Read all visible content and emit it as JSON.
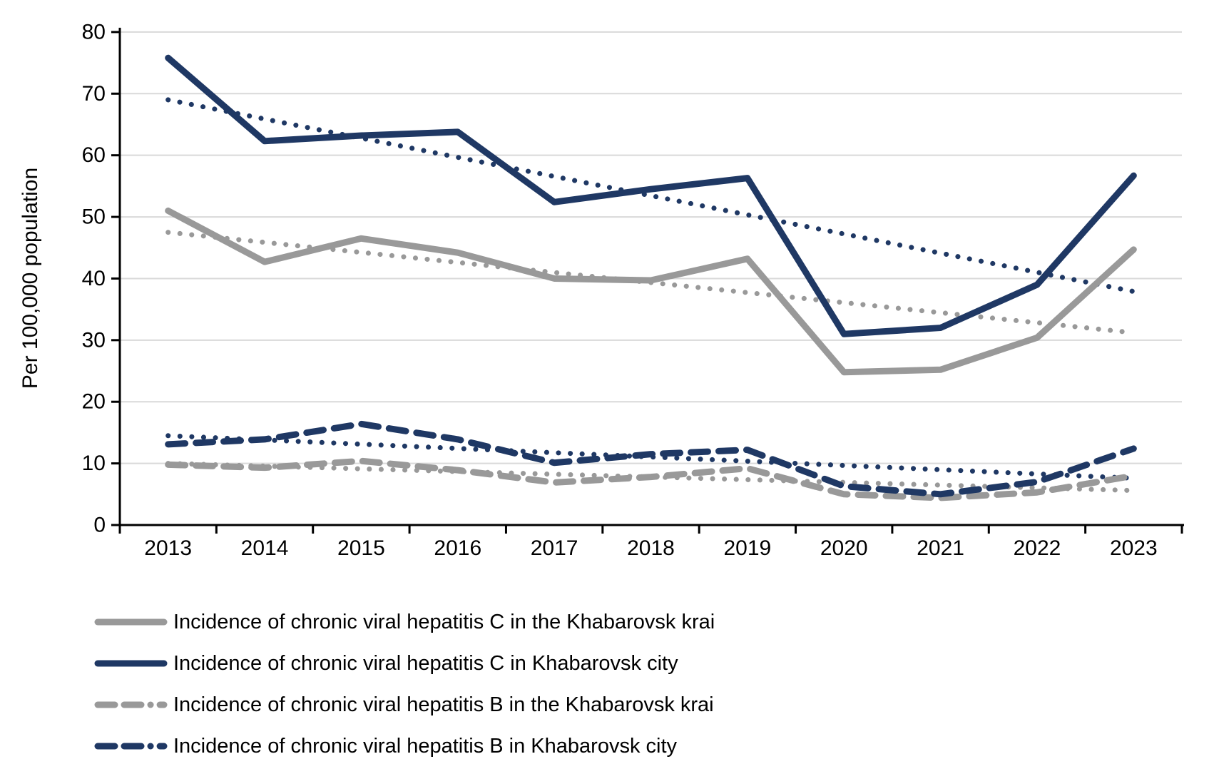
{
  "page": {
    "background": "#FFFFFF"
  },
  "colors": {
    "navy": "#1F3864",
    "gray": "#999999",
    "gridline": "#D9D9D9",
    "axis": "#000000",
    "text": "#000000"
  },
  "y_axis": {
    "title": "Per 100,000 population",
    "min": 0,
    "max": 80,
    "tick_step": 10,
    "ticks": [
      0,
      10,
      20,
      30,
      40,
      50,
      60,
      70,
      80
    ]
  },
  "x_axis": {
    "categories": [
      "2013",
      "2014",
      "2015",
      "2016",
      "2017",
      "2018",
      "2019",
      "2020",
      "2021",
      "2022",
      "2023"
    ]
  },
  "chart_data": {
    "type": "line",
    "title": "",
    "xlabel": "",
    "ylabel": "Per 100,000 population",
    "x": [
      "2013",
      "2014",
      "2015",
      "2016",
      "2017",
      "2018",
      "2019",
      "2020",
      "2021",
      "2022",
      "2023"
    ],
    "ylim": [
      0,
      80
    ],
    "grid": "horizontal",
    "legend_position": "bottom-left",
    "series": [
      {
        "name": "Incidence of chronic viral hepatitis C in the Khabarovsk krai",
        "color": "gray",
        "style": "solid",
        "values": [
          51.0,
          42.7,
          46.5,
          44.2,
          40.0,
          39.7,
          43.2,
          24.8,
          25.2,
          30.4,
          44.7
        ],
        "trendline": {
          "style": "dotted",
          "start": 47.5,
          "end": 31.2
        }
      },
      {
        "name": "Incidence of chronic viral hepatitis C in Khabarovsk city",
        "color": "navy",
        "style": "solid",
        "values": [
          75.8,
          62.3,
          63.2,
          63.8,
          52.4,
          54.5,
          56.3,
          31.0,
          32.0,
          39.0,
          56.7
        ],
        "trendline": {
          "style": "dotted",
          "start": 69.0,
          "end": 37.9
        }
      },
      {
        "name": "Incidence of chronic viral hepatitis B in the Khabarovsk krai",
        "color": "gray",
        "style": "dashed",
        "values": [
          9.8,
          9.3,
          10.4,
          8.9,
          6.9,
          7.8,
          9.2,
          5.0,
          4.4,
          5.3,
          8.0
        ],
        "trendline": {
          "style": "dotted",
          "start": 10.0,
          "end": 5.6
        }
      },
      {
        "name": "Incidence of chronic viral hepatitis B in Khabarovsk city",
        "color": "navy",
        "style": "dashed",
        "values": [
          13.1,
          13.9,
          16.4,
          13.9,
          10.1,
          11.5,
          12.2,
          6.3,
          5.0,
          7.0,
          12.4
        ],
        "trendline": {
          "style": "dotted",
          "start": 14.5,
          "end": 7.6
        }
      }
    ]
  }
}
